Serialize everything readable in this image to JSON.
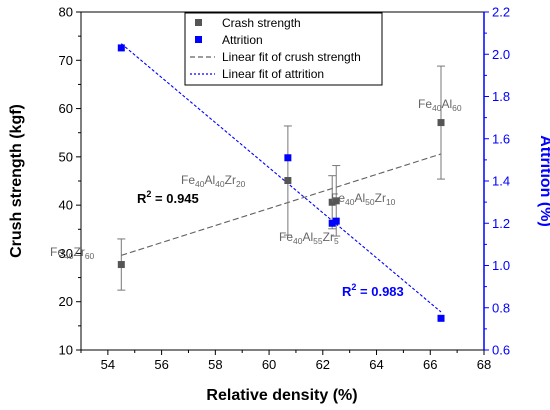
{
  "chart_data": {
    "type": "scatter",
    "xlabel": "Relative density (%)",
    "ylabel": "Crush strength (kgf)",
    "y2label": "Attrition (%)",
    "xlim": [
      53,
      68
    ],
    "ylim": [
      10,
      80
    ],
    "y2lim": [
      0.6,
      2.2
    ],
    "x_ticks": [
      "54",
      "56",
      "58",
      "60",
      "62",
      "64",
      "66",
      "68"
    ],
    "y_ticks": [
      "10",
      "20",
      "30",
      "40",
      "50",
      "60",
      "70",
      "80"
    ],
    "y2_ticks": [
      "0.6",
      "0.8",
      "1.0",
      "1.2",
      "1.4",
      "1.6",
      "1.8",
      "2.0",
      "2.2"
    ],
    "colors": {
      "crush": "#555555",
      "attrition": "#0000ff",
      "fit_crush": "#606060",
      "fit_attrition": "#0000ff",
      "y2axis": "#0000ff"
    },
    "legend": {
      "position": "top-center",
      "entries": [
        "Crash strength",
        "Attrition",
        "Linear fit of crush strength",
        "Linear fit of attrition"
      ]
    },
    "series": [
      {
        "name": "Crash strength",
        "axis": "left",
        "marker": "square",
        "points": [
          {
            "x": 54.5,
            "y": 27.7,
            "err": 5.3
          },
          {
            "x": 60.7,
            "y": 45.1,
            "err": 11.3
          },
          {
            "x": 62.35,
            "y": 40.6,
            "err": 5.5
          },
          {
            "x": 62.5,
            "y": 40.9,
            "err": 7.3
          },
          {
            "x": 66.4,
            "y": 57.1,
            "err": 11.7
          }
        ]
      },
      {
        "name": "Attrition",
        "axis": "right",
        "marker": "square",
        "points": [
          {
            "x": 54.5,
            "y": 2.03
          },
          {
            "x": 60.7,
            "y": 1.51
          },
          {
            "x": 62.35,
            "y": 1.2
          },
          {
            "x": 62.5,
            "y": 1.21
          },
          {
            "x": 66.4,
            "y": 0.75
          }
        ]
      }
    ],
    "fits": [
      {
        "name": "Linear fit of crush strength",
        "axis": "left",
        "from": [
          54.5,
          29.6
        ],
        "to": [
          66.4,
          50.6
        ]
      },
      {
        "name": "Linear fit of attrition",
        "axis": "right",
        "from": [
          54.5,
          2.05
        ],
        "to": [
          66.4,
          0.78
        ]
      }
    ],
    "annotations": {
      "fe40zr60": {
        "base": "Fe",
        "s1": "40",
        "mid": "Zr",
        "s2": "60"
      },
      "fe40al40zr20": {
        "base": "Fe",
        "s1": "40",
        "mid": "Al",
        "s2": "40",
        "mid2": "Zr",
        "s3": "20"
      },
      "fe40al50zr10": {
        "base": "Fe",
        "s1": "40",
        "mid": "Al",
        "s2": "50",
        "mid2": "Zr",
        "s3": "10"
      },
      "fe40al55zr5": {
        "base": "Fe",
        "s1": "40",
        "mid": "Al",
        "s2": "55",
        "mid2": "Zr",
        "s3": "5"
      },
      "fe40al60": {
        "base": "Fe",
        "s1": "40",
        "mid": "Al",
        "s2": "60"
      },
      "r2_crush": {
        "prefix": "R",
        "exp": "2",
        "value": " = 0.945"
      },
      "r2_attrition": {
        "prefix": "R",
        "exp": "2",
        "value": " = 0.983"
      }
    }
  }
}
